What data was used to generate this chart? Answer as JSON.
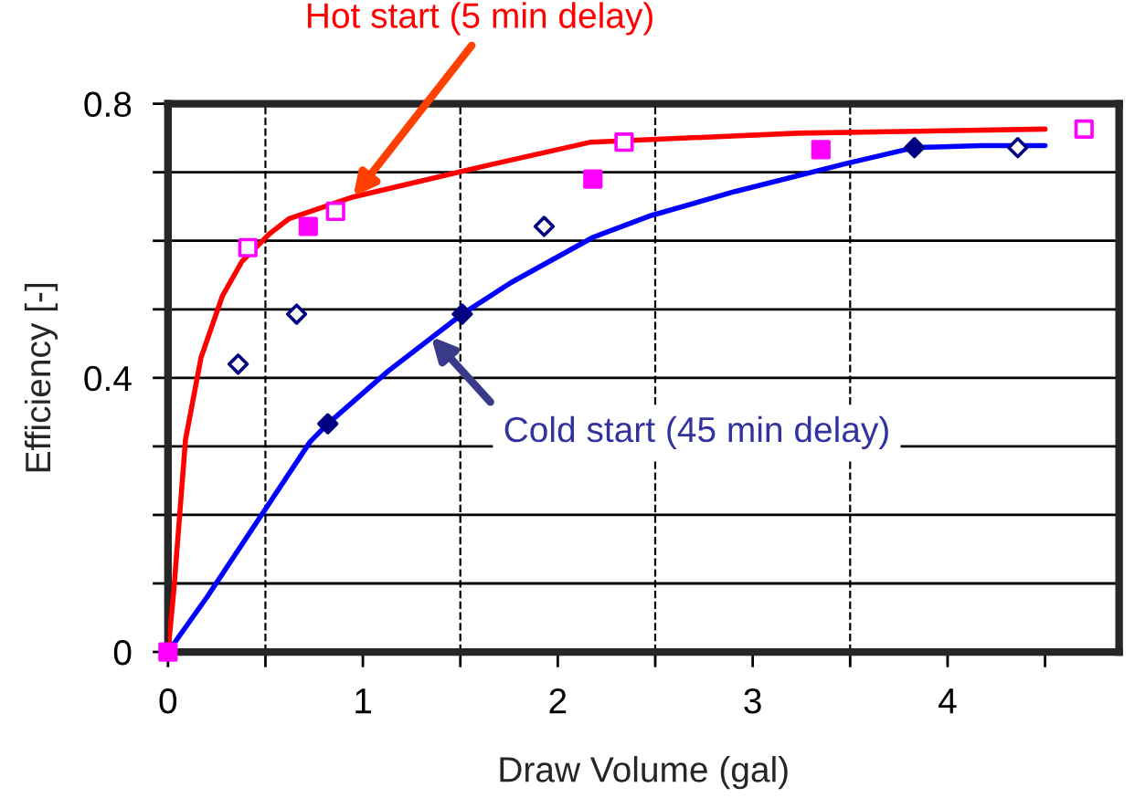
{
  "chart_data": {
    "type": "line",
    "xlabel": "Draw Volume (gal)",
    "ylabel": "Efficiency [-]",
    "xlim": [
      0,
      4.88
    ],
    "ylim": [
      0,
      0.8
    ],
    "xticks": [
      0,
      {
        "value": 0.5,
        "label": null
      },
      1,
      {
        "value": 1.5,
        "label": null
      },
      2,
      {
        "value": 2.5,
        "label": null
      },
      3,
      {
        "value": 3.5,
        "label": null
      },
      4,
      {
        "value": 4.5,
        "label": null
      }
    ],
    "yticks": [
      0,
      {
        "value": 0.1,
        "label": null
      },
      {
        "value": 0.2,
        "label": null
      },
      {
        "value": 0.3,
        "label": null
      },
      0.4,
      {
        "value": 0.5,
        "label": null
      },
      {
        "value": 0.6,
        "label": null
      },
      {
        "value": 0.7,
        "label": null
      },
      0.8
    ],
    "grid": "y",
    "series": [
      {
        "color": "#ff0000",
        "marker": "none",
        "x": [
          0,
          0.03,
          0.09,
          0.17,
          0.28,
          0.38,
          0.52,
          0.62,
          0.95,
          1.67,
          2.17,
          3.23,
          4.5
        ],
        "values": [
          0,
          0.09,
          0.31,
          0.43,
          0.52,
          0.57,
          0.61,
          0.632,
          0.664,
          0.712,
          0.744,
          0.757,
          0.763
        ]
      },
      {
        "color": "#0000ff",
        "marker": "none",
        "x": [
          0,
          0.2,
          0.48,
          0.73,
          0.82,
          1.13,
          1.51,
          1.76,
          2.18,
          2.48,
          2.91,
          3.47,
          3.83,
          4.17,
          4.5
        ],
        "values": [
          0,
          0.08,
          0.2,
          0.307,
          0.333,
          0.41,
          0.493,
          0.539,
          0.605,
          0.637,
          0.672,
          0.712,
          0.736,
          0.739,
          0.739
        ]
      },
      {
        "type": "scatter",
        "color": "#ff00ff",
        "marker": "square",
        "x": [
          0.41,
          0.86,
          2.34,
          4.7
        ],
        "values": [
          0.59,
          0.643,
          0.744,
          0.763
        ]
      },
      {
        "type": "scatter",
        "color": "#ff00ff",
        "marker": "square",
        "x": [
          0,
          0.72,
          2.18,
          3.35
        ],
        "values": [
          0,
          0.621,
          0.69,
          0.733
        ]
      },
      {
        "type": "scatter",
        "color": "#000080",
        "marker": "diamond",
        "x": [
          0.36,
          0.66,
          1.93,
          4.36
        ],
        "values": [
          0.42,
          0.493,
          0.621,
          0.736
        ]
      },
      {
        "type": "scatter",
        "color": "#000080",
        "marker": "diamond",
        "x": [
          0.82,
          1.51,
          3.83
        ],
        "values": [
          0.333,
          0.493,
          0.736
        ]
      }
    ],
    "ref_lines": [
      {
        "axis": "x",
        "value": 0.5,
        "line_style": "dashed",
        "color": "#000000"
      },
      {
        "axis": "x",
        "value": 1.5,
        "line_style": "dashed",
        "color": "#000000"
      },
      {
        "axis": "x",
        "value": 2.5,
        "line_style": "dashed",
        "color": "#000000"
      },
      {
        "axis": "x",
        "value": 3.5,
        "line_style": "dashed",
        "color": "#000000"
      }
    ],
    "annotations": [
      {
        "text": "Hot start (5 min delay)",
        "x": 0.95,
        "y": 0.664
      },
      {
        "text": "Cold start (45 min delay)",
        "x": 1.35,
        "y": 0.46
      }
    ]
  }
}
